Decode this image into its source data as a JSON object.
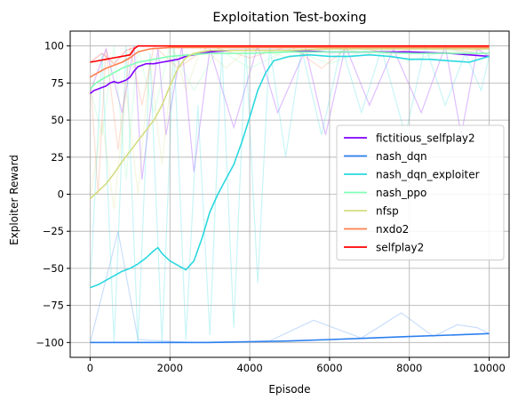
{
  "chart_data": {
    "type": "line",
    "title": "Exploitation Test-boxing",
    "xlabel": "Episode",
    "ylabel": "Exploiter Reward",
    "xlim": [
      -500,
      10500
    ],
    "ylim": [
      -110,
      110
    ],
    "xticks": [
      0,
      2000,
      4000,
      6000,
      8000,
      10000
    ],
    "yticks": [
      -100,
      -75,
      -50,
      -25,
      0,
      25,
      50,
      75,
      100
    ],
    "xtick_labels": [
      "0",
      "2000",
      "4000",
      "6000",
      "8000",
      "10000"
    ],
    "ytick_labels": [
      "−100",
      "−75",
      "−50",
      "−25",
      "0",
      "25",
      "50",
      "75",
      "100"
    ],
    "grid": true,
    "legend_position": "center-right",
    "raw_alpha": 0.25,
    "series": [
      {
        "name": "fictitious_selfplay2",
        "color": "#7f00ff",
        "x": [
          0,
          100,
          200,
          300,
          400,
          500,
          600,
          700,
          800,
          900,
          1000,
          1100,
          1200,
          1400,
          1600,
          1800,
          2000,
          2200,
          2400,
          2600,
          2800,
          3000,
          3500,
          4000,
          5000,
          6000,
          7000,
          8000,
          9000,
          10000
        ],
        "y": [
          68,
          70,
          71,
          72,
          73,
          75,
          76,
          75,
          76,
          77,
          79,
          83,
          86,
          88,
          88,
          89,
          90,
          91,
          93,
          94,
          95,
          96,
          97,
          97,
          97,
          96,
          96,
          96,
          95,
          93
        ],
        "raw": [
          [
            0,
            69
          ],
          [
            400,
            98
          ],
          [
            800,
            55
          ],
          [
            1100,
            100
          ],
          [
            1300,
            10
          ],
          [
            1700,
            98
          ],
          [
            1900,
            40
          ],
          [
            2300,
            100
          ],
          [
            2600,
            15
          ],
          [
            3000,
            98
          ],
          [
            3600,
            45
          ],
          [
            4200,
            100
          ],
          [
            4700,
            55
          ],
          [
            5400,
            98
          ],
          [
            5900,
            40
          ],
          [
            6400,
            100
          ],
          [
            7000,
            60
          ],
          [
            7600,
            98
          ],
          [
            8300,
            55
          ],
          [
            8900,
            100
          ],
          [
            9300,
            40
          ],
          [
            9700,
            98
          ],
          [
            10000,
            93
          ]
        ]
      },
      {
        "name": "nash_dqn",
        "color": "#2c7fef",
        "x": [
          0,
          1000,
          2000,
          3000,
          4000,
          5000,
          6000,
          7000,
          8000,
          9000,
          10000
        ],
        "y": [
          -100,
          -100,
          -100,
          -100,
          -99.5,
          -99,
          -98,
          -97,
          -96,
          -95,
          -94
        ],
        "raw": [
          [
            0,
            -100
          ],
          [
            700,
            -25
          ],
          [
            1200,
            -98
          ],
          [
            2600,
            -100
          ],
          [
            4500,
            -99
          ],
          [
            5600,
            -85
          ],
          [
            6800,
            -97
          ],
          [
            7800,
            -80
          ],
          [
            8600,
            -96
          ],
          [
            9200,
            -88
          ],
          [
            9700,
            -90
          ],
          [
            10000,
            -94
          ]
        ]
      },
      {
        "name": "nash_dqn_exploiter",
        "color": "#29d8df",
        "x": [
          0,
          200,
          400,
          600,
          800,
          1000,
          1200,
          1400,
          1600,
          1700,
          1800,
          2000,
          2200,
          2400,
          2600,
          2800,
          3000,
          3200,
          3400,
          3600,
          3800,
          4000,
          4200,
          4400,
          4600,
          5000,
          5500,
          6000,
          6500,
          7000,
          7500,
          8000,
          8500,
          9000,
          9500,
          10000
        ],
        "y": [
          -63,
          -61,
          -58,
          -55,
          -52,
          -50,
          -47,
          -43,
          -38,
          -36,
          -40,
          -45,
          -48,
          -51,
          -45,
          -30,
          -12,
          0,
          10,
          20,
          35,
          52,
          70,
          82,
          90,
          93,
          94,
          93,
          93,
          94,
          93,
          91,
          91,
          90,
          89,
          93
        ],
        "raw": [
          [
            0,
            -63
          ],
          [
            300,
            95
          ],
          [
            600,
            -100
          ],
          [
            900,
            100
          ],
          [
            1200,
            -100
          ],
          [
            1500,
            95
          ],
          [
            1800,
            -100
          ],
          [
            2100,
            100
          ],
          [
            2400,
            -98
          ],
          [
            2700,
            60
          ],
          [
            3000,
            -95
          ],
          [
            3300,
            98
          ],
          [
            3600,
            -90
          ],
          [
            3900,
            100
          ],
          [
            4200,
            -60
          ],
          [
            4500,
            100
          ],
          [
            4900,
            25
          ],
          [
            5300,
            98
          ],
          [
            5800,
            40
          ],
          [
            6300,
            100
          ],
          [
            6800,
            55
          ],
          [
            7300,
            98
          ],
          [
            7900,
            40
          ],
          [
            8400,
            100
          ],
          [
            8900,
            60
          ],
          [
            9400,
            95
          ],
          [
            9800,
            70
          ],
          [
            10000,
            93
          ]
        ]
      },
      {
        "name": "nash_ppo",
        "color": "#80ffb4",
        "x": [
          0,
          100,
          200,
          400,
          600,
          800,
          1000,
          1200,
          1400,
          1600,
          1800,
          2000,
          2500,
          3000,
          4000,
          5000,
          6000,
          7000,
          8000,
          9000,
          10000
        ],
        "y": [
          71,
          74,
          76,
          79,
          82,
          85,
          87,
          89,
          90,
          91,
          92,
          93,
          94,
          95,
          95,
          96,
          96,
          96,
          95,
          95,
          95
        ],
        "raw": [
          [
            0,
            71
          ],
          [
            300,
            40
          ],
          [
            600,
            100
          ],
          [
            900,
            10
          ],
          [
            1200,
            98
          ],
          [
            1600,
            55
          ],
          [
            2000,
            100
          ],
          [
            2600,
            70
          ],
          [
            3200,
            98
          ],
          [
            4000,
            85
          ],
          [
            5000,
            98
          ],
          [
            6000,
            88
          ],
          [
            7000,
            98
          ],
          [
            8000,
            90
          ],
          [
            9000,
            97
          ],
          [
            10000,
            95
          ]
        ]
      },
      {
        "name": "nfsp",
        "color": "#d4dd80",
        "x": [
          0,
          200,
          400,
          600,
          800,
          1000,
          1200,
          1400,
          1600,
          1800,
          2000,
          2200,
          2400,
          2600,
          2800,
          3000,
          4000,
          5000,
          6000,
          7000,
          8000,
          9000,
          10000
        ],
        "y": [
          -3,
          2,
          7,
          14,
          22,
          29,
          36,
          43,
          50,
          60,
          73,
          85,
          92,
          95,
          96,
          97,
          97,
          97,
          98,
          98,
          98,
          98,
          98
        ],
        "raw": [
          [
            0,
            -3
          ],
          [
            300,
            50
          ],
          [
            600,
            -10
          ],
          [
            900,
            70
          ],
          [
            1200,
            0
          ],
          [
            1500,
            90
          ],
          [
            1800,
            20
          ],
          [
            2100,
            98
          ],
          [
            2400,
            70
          ],
          [
            2800,
            100
          ],
          [
            3400,
            85
          ],
          [
            4000,
            99
          ],
          [
            5000,
            92
          ],
          [
            6000,
            99
          ],
          [
            7000,
            95
          ],
          [
            8000,
            100
          ],
          [
            9000,
            96
          ],
          [
            10000,
            98
          ]
        ]
      },
      {
        "name": "nxdo2",
        "color": "#ff7f4e",
        "x": [
          0,
          200,
          400,
          600,
          800,
          1000,
          1200,
          1500,
          2000,
          3000,
          4000,
          5000,
          6000,
          7000,
          8000,
          9000,
          10000
        ],
        "y": [
          79,
          82,
          85,
          87,
          89,
          92,
          96,
          98,
          99,
          99,
          99,
          99,
          99,
          99,
          99,
          99,
          99
        ],
        "raw": [
          [
            0,
            79
          ],
          [
            200,
            0
          ],
          [
            400,
            98
          ],
          [
            700,
            30
          ],
          [
            1000,
            99
          ],
          [
            1300,
            60
          ],
          [
            1600,
            100
          ],
          [
            2200,
            85
          ],
          [
            3000,
            100
          ],
          [
            4000,
            92
          ],
          [
            5000,
            100
          ],
          [
            5800,
            85
          ],
          [
            6500,
            100
          ],
          [
            7500,
            95
          ],
          [
            8500,
            100
          ],
          [
            9500,
            96
          ],
          [
            10000,
            99
          ]
        ]
      },
      {
        "name": "selfplay2",
        "color": "#ff0000",
        "x": [
          0,
          200,
          400,
          600,
          800,
          1000,
          1100,
          1200,
          1400,
          2000,
          3000,
          4000,
          5000,
          6000,
          7000,
          8000,
          9000,
          10000
        ],
        "y": [
          89,
          90,
          91,
          92,
          93,
          94,
          98,
          100,
          100,
          100,
          100,
          100,
          100,
          100,
          100,
          100,
          100,
          100
        ],
        "raw": [
          [
            0,
            89
          ],
          [
            300,
            95
          ],
          [
            600,
            88
          ],
          [
            900,
            97
          ],
          [
            1200,
            100
          ],
          [
            3000,
            100
          ],
          [
            6000,
            100
          ],
          [
            10000,
            100
          ]
        ]
      }
    ]
  }
}
